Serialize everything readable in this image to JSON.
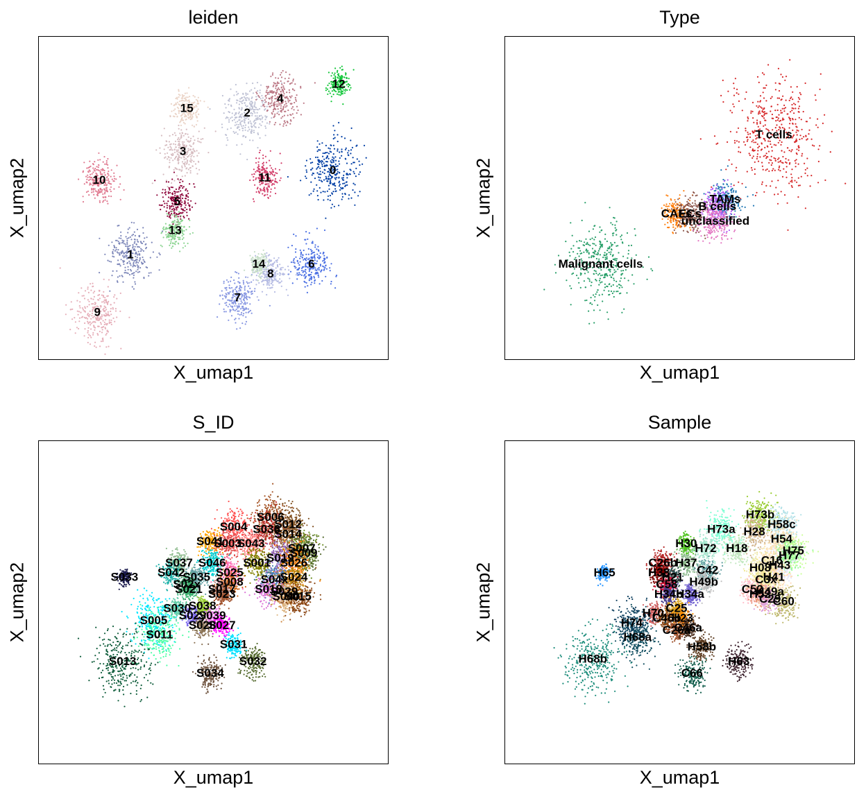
{
  "chart_data": [
    {
      "type": "scatter",
      "title": "leiden",
      "xlabel": "X_umap1",
      "ylabel": "X_umap2",
      "grid": false,
      "legend": "on data",
      "clusters": [
        {
          "name": "0",
          "x": 11.6,
          "y": 7.9,
          "color": "#023fa5",
          "spread": 1.2
        },
        {
          "name": "1",
          "x": 1.2,
          "y": 4.4,
          "color": "#7d87b9",
          "spread": 1.0
        },
        {
          "name": "2",
          "x": 7.2,
          "y": 10.3,
          "color": "#bec1d4",
          "spread": 1.1
        },
        {
          "name": "3",
          "x": 3.9,
          "y": 8.7,
          "color": "#d6bcc0",
          "spread": 0.9
        },
        {
          "name": "4",
          "x": 8.9,
          "y": 10.9,
          "color": "#bb7784",
          "spread": 0.9
        },
        {
          "name": "5",
          "x": 3.6,
          "y": 6.6,
          "color": "#8e063b",
          "spread": 0.7
        },
        {
          "name": "6",
          "x": 10.5,
          "y": 4.0,
          "color": "#4a6fe3",
          "spread": 0.9
        },
        {
          "name": "7",
          "x": 6.7,
          "y": 2.6,
          "color": "#8595e1",
          "spread": 0.8
        },
        {
          "name": "8",
          "x": 8.4,
          "y": 3.6,
          "color": "#b5bbe3",
          "spread": 0.7
        },
        {
          "name": "9",
          "x": -0.5,
          "y": 2.0,
          "color": "#e6afb9",
          "spread": 1.1
        },
        {
          "name": "10",
          "x": -0.4,
          "y": 7.5,
          "color": "#e07b91",
          "spread": 0.8
        },
        {
          "name": "11",
          "x": 8.1,
          "y": 7.6,
          "color": "#d33f6a",
          "spread": 0.6
        },
        {
          "name": "12",
          "x": 11.9,
          "y": 11.5,
          "color": "#11c638",
          "spread": 0.5
        },
        {
          "name": "13",
          "x": 3.5,
          "y": 5.4,
          "color": "#8dd593",
          "spread": 0.6
        },
        {
          "name": "14",
          "x": 7.8,
          "y": 4.0,
          "color": "#c6dec7",
          "spread": 0.4
        },
        {
          "name": "15",
          "x": 4.1,
          "y": 10.5,
          "color": "#ead3c6",
          "spread": 0.6
        }
      ]
    },
    {
      "type": "scatter",
      "title": "Type",
      "xlabel": "X_umap1",
      "ylabel": "X_umap2",
      "grid": false,
      "legend": "on data",
      "clusters": [
        {
          "name": "T cells",
          "x": 10.3,
          "y": 9.4,
          "color": "#d62728",
          "spread": 2.2
        },
        {
          "name": "TAMs",
          "x": 7.8,
          "y": 6.7,
          "color": "#1f77b4",
          "spread": 0.7
        },
        {
          "name": "B cells",
          "x": 7.4,
          "y": 6.4,
          "color": "#b55cf5",
          "spread": 0.7
        },
        {
          "name": "CAFs",
          "x": 5.3,
          "y": 6.1,
          "color": "#ff7f0e",
          "spread": 0.6
        },
        {
          "name": "ECs",
          "x": 6.0,
          "y": 6.1,
          "color": "#8c564b",
          "spread": 0.7
        },
        {
          "name": "unclassified",
          "x": 7.3,
          "y": 5.8,
          "color": "#e377c2",
          "spread": 0.8
        },
        {
          "name": "Malignant cells",
          "x": 1.4,
          "y": 4.0,
          "color": "#279e68",
          "spread": 1.6
        }
      ]
    },
    {
      "type": "scatter",
      "title": "S_ID",
      "xlabel": "X_umap1",
      "ylabel": "X_umap2",
      "grid": false,
      "legend": "on data",
      "clusters": [
        {
          "name": "S006",
          "x": 8.4,
          "y": 10.3,
          "color": "#a65628",
          "spread": 0.8
        },
        {
          "name": "S012",
          "x": 9.3,
          "y": 10.0,
          "color": "#7f4f1f",
          "spread": 0.8
        },
        {
          "name": "S004",
          "x": 6.5,
          "y": 9.9,
          "color": "#ff4f4f",
          "spread": 0.7
        },
        {
          "name": "S036",
          "x": 8.2,
          "y": 9.8,
          "color": "#c03030",
          "spread": 0.7
        },
        {
          "name": "S014",
          "x": 9.3,
          "y": 9.6,
          "color": "#8b5a2b",
          "spread": 0.8
        },
        {
          "name": "S041",
          "x": 5.3,
          "y": 9.3,
          "color": "#ffa500",
          "spread": 0.5
        },
        {
          "name": "S003",
          "x": 6.2,
          "y": 9.2,
          "color": "#e05050",
          "spread": 0.6
        },
        {
          "name": "S043",
          "x": 7.4,
          "y": 9.2,
          "color": "#ff8080",
          "spread": 0.6
        },
        {
          "name": "S007",
          "x": 10.0,
          "y": 9.0,
          "color": "#6b8e23",
          "spread": 0.7
        },
        {
          "name": "S009",
          "x": 10.1,
          "y": 8.8,
          "color": "#556b2f",
          "spread": 0.7
        },
        {
          "name": "S019",
          "x": 8.9,
          "y": 8.6,
          "color": "#9467bd",
          "spread": 0.7
        },
        {
          "name": "S026",
          "x": 9.6,
          "y": 8.4,
          "color": "#ff7f0e",
          "spread": 0.7
        },
        {
          "name": "S033",
          "x": 0.9,
          "y": 7.8,
          "color": "#1a1a4d",
          "spread": 0.3
        },
        {
          "name": "S037",
          "x": 3.7,
          "y": 8.4,
          "color": "#8fbc8f",
          "spread": 0.5
        },
        {
          "name": "S046",
          "x": 5.4,
          "y": 8.4,
          "color": "#00ced1",
          "spread": 0.5
        },
        {
          "name": "S042",
          "x": 3.3,
          "y": 8.0,
          "color": "#20b2aa",
          "spread": 0.5
        },
        {
          "name": "S025",
          "x": 6.3,
          "y": 8.0,
          "color": "#ff69b4",
          "spread": 0.5
        },
        {
          "name": "S001",
          "x": 7.7,
          "y": 8.4,
          "color": "#808000",
          "spread": 0.6
        },
        {
          "name": "S035",
          "x": 4.6,
          "y": 7.8,
          "color": "#5f9ea0",
          "spread": 0.5
        },
        {
          "name": "S024",
          "x": 9.6,
          "y": 7.8,
          "color": "#b8860b",
          "spread": 0.6
        },
        {
          "name": "S008",
          "x": 6.3,
          "y": 7.6,
          "color": "#d2691e",
          "spread": 0.5
        },
        {
          "name": "S02x",
          "x": 4.1,
          "y": 7.5,
          "color": "#2e8b57",
          "spread": 0.4
        },
        {
          "name": "S04x",
          "x": 8.6,
          "y": 7.7,
          "color": "#4682b4",
          "spread": 0.6
        },
        {
          "name": "S021",
          "x": 4.2,
          "y": 7.3,
          "color": "#3cb371",
          "spread": 0.4
        },
        {
          "name": "S018",
          "x": 8.3,
          "y": 7.3,
          "color": "#da70d6",
          "spread": 0.6
        },
        {
          "name": "S029",
          "x": 9.1,
          "y": 7.2,
          "color": "#cd853f",
          "spread": 0.6
        },
        {
          "name": "S017",
          "x": 5.9,
          "y": 7.3,
          "color": "#bc8f8f",
          "spread": 0.4
        },
        {
          "name": "S023",
          "x": 5.9,
          "y": 7.1,
          "color": "#a0522d",
          "spread": 0.4
        },
        {
          "name": "S040",
          "x": 9.2,
          "y": 7.0,
          "color": "#deb887",
          "spread": 0.6
        },
        {
          "name": "S015",
          "x": 9.8,
          "y": 7.0,
          "color": "#8b4513",
          "spread": 0.7
        },
        {
          "name": "S038",
          "x": 4.9,
          "y": 6.6,
          "color": "#9acd32",
          "spread": 0.4
        },
        {
          "name": "S030",
          "x": 3.6,
          "y": 6.5,
          "color": "#66cdaa",
          "spread": 0.4
        },
        {
          "name": "S02y",
          "x": 4.4,
          "y": 6.2,
          "color": "#7b68ee",
          "spread": 0.4
        },
        {
          "name": "S039",
          "x": 5.4,
          "y": 6.2,
          "color": "#ee82ee",
          "spread": 0.4
        },
        {
          "name": "S005",
          "x": 2.4,
          "y": 6.0,
          "color": "#00e5ff",
          "spread": 1.0
        },
        {
          "name": "S028",
          "x": 4.9,
          "y": 5.8,
          "color": "#8b7355",
          "spread": 0.4
        },
        {
          "name": "S027",
          "x": 5.9,
          "y": 5.8,
          "color": "#ff00ff",
          "spread": 0.4
        },
        {
          "name": "S011",
          "x": 2.7,
          "y": 5.4,
          "color": "#4dffa6",
          "spread": 0.9
        },
        {
          "name": "S031",
          "x": 6.5,
          "y": 5.0,
          "color": "#00e0ff",
          "spread": 0.4
        },
        {
          "name": "S013",
          "x": 0.8,
          "y": 4.3,
          "color": "#0d5c3a",
          "spread": 1.3
        },
        {
          "name": "S032",
          "x": 7.5,
          "y": 4.3,
          "color": "#556b2f",
          "spread": 0.6
        },
        {
          "name": "S034",
          "x": 5.3,
          "y": 3.8,
          "color": "#6b4f3a",
          "spread": 0.6
        }
      ]
    },
    {
      "type": "scatter",
      "title": "Sample",
      "xlabel": "X_umap1",
      "ylabel": "X_umap2",
      "grid": false,
      "legend": "on data",
      "clusters": [
        {
          "name": "H73b",
          "x": 9.6,
          "y": 10.4,
          "color": "#9acd32",
          "spread": 0.7
        },
        {
          "name": "H58c",
          "x": 10.7,
          "y": 10.0,
          "color": "#b0e0e6",
          "spread": 0.7
        },
        {
          "name": "H73a",
          "x": 7.6,
          "y": 9.8,
          "color": "#7fffd4",
          "spread": 0.7
        },
        {
          "name": "H28",
          "x": 9.3,
          "y": 9.7,
          "color": "#d2b48c",
          "spread": 0.7
        },
        {
          "name": "H54",
          "x": 10.7,
          "y": 9.4,
          "color": "#f5deb3",
          "spread": 0.7
        },
        {
          "name": "H30",
          "x": 5.8,
          "y": 9.2,
          "color": "#4dc31c",
          "spread": 0.4
        },
        {
          "name": "H72",
          "x": 6.8,
          "y": 9.0,
          "color": "#a8e6cf",
          "spread": 0.6
        },
        {
          "name": "H18",
          "x": 8.4,
          "y": 9.0,
          "color": "#c2e8c0",
          "spread": 0.6
        },
        {
          "name": "H75",
          "x": 11.3,
          "y": 8.9,
          "color": "#ccff99",
          "spread": 0.6
        },
        {
          "name": "H77",
          "x": 11.1,
          "y": 8.7,
          "color": "#98fb98",
          "spread": 0.6
        },
        {
          "name": "H43",
          "x": 10.6,
          "y": 8.3,
          "color": "#e6e6fa",
          "spread": 0.6
        },
        {
          "name": "C16",
          "x": 10.2,
          "y": 8.5,
          "color": "#ffe4b5",
          "spread": 0.6
        },
        {
          "name": "H08",
          "x": 9.6,
          "y": 8.2,
          "color": "#eee8aa",
          "spread": 0.6
        },
        {
          "name": "C26b",
          "x": 4.6,
          "y": 8.4,
          "color": "#b22222",
          "spread": 0.5
        },
        {
          "name": "H37",
          "x": 5.8,
          "y": 8.4,
          "color": "#8fbc8f",
          "spread": 0.5
        },
        {
          "name": "C42",
          "x": 6.9,
          "y": 8.1,
          "color": "#5f9ea0",
          "spread": 0.5
        },
        {
          "name": "H65",
          "x": 1.6,
          "y": 8.0,
          "color": "#1e90ff",
          "spread": 0.3
        },
        {
          "name": "H38",
          "x": 4.4,
          "y": 8.0,
          "color": "#800000",
          "spread": 0.4
        },
        {
          "name": "H21",
          "x": 5.1,
          "y": 7.8,
          "color": "#2f4f4f",
          "spread": 0.4
        },
        {
          "name": "H41",
          "x": 10.3,
          "y": 7.8,
          "color": "#ffdab9",
          "spread": 0.6
        },
        {
          "name": "C3x",
          "x": 9.9,
          "y": 7.7,
          "color": "#f0e68c",
          "spread": 0.6
        },
        {
          "name": "H49b",
          "x": 6.7,
          "y": 7.6,
          "color": "#c0c0c0",
          "spread": 0.5
        },
        {
          "name": "C58",
          "x": 4.8,
          "y": 7.5,
          "color": "#dc143c",
          "spread": 0.4
        },
        {
          "name": "C52",
          "x": 9.2,
          "y": 7.3,
          "color": "#ffc0cb",
          "spread": 0.5
        },
        {
          "name": "H49a",
          "x": 10.1,
          "y": 7.2,
          "color": "#fafad2",
          "spread": 0.6
        },
        {
          "name": "H34b",
          "x": 4.9,
          "y": 7.1,
          "color": "#483d8b",
          "spread": 0.4
        },
        {
          "name": "H34a",
          "x": 6.0,
          "y": 7.1,
          "color": "#6a5acd",
          "spread": 0.4
        },
        {
          "name": "H52",
          "x": 9.6,
          "y": 7.1,
          "color": "#e9967a",
          "spread": 0.5
        },
        {
          "name": "C29",
          "x": 10.1,
          "y": 6.9,
          "color": "#dda0dd",
          "spread": 0.5
        },
        {
          "name": "C60",
          "x": 10.8,
          "y": 6.8,
          "color": "#bdb76b",
          "spread": 0.6
        },
        {
          "name": "H70",
          "x": 4.1,
          "y": 6.3,
          "color": "#cd5c5c",
          "spread": 0.4
        },
        {
          "name": "C25",
          "x": 5.3,
          "y": 6.5,
          "color": "#daa520",
          "spread": 0.4
        },
        {
          "name": "C46b",
          "x": 4.8,
          "y": 6.1,
          "color": "#8b4513",
          "spread": 0.4
        },
        {
          "name": "H23",
          "x": 5.6,
          "y": 6.1,
          "color": "#ff8c00",
          "spread": 0.4
        },
        {
          "name": "H74",
          "x": 3.0,
          "y": 5.9,
          "color": "#0b3d5c",
          "spread": 0.8
        },
        {
          "name": "C26a",
          "x": 5.3,
          "y": 5.6,
          "color": "#a0522d",
          "spread": 0.4
        },
        {
          "name": "C46a",
          "x": 5.9,
          "y": 5.7,
          "color": "#4b2e1e",
          "spread": 0.4
        },
        {
          "name": "H68a",
          "x": 3.3,
          "y": 5.3,
          "color": "#114e60",
          "spread": 0.8
        },
        {
          "name": "H58b",
          "x": 6.6,
          "y": 4.9,
          "color": "#5c3a1e",
          "spread": 0.5
        },
        {
          "name": "H68b",
          "x": 1.0,
          "y": 4.4,
          "color": "#1a8c7a",
          "spread": 1.3
        },
        {
          "name": "H63",
          "x": 8.5,
          "y": 4.3,
          "color": "#3b1f2b",
          "spread": 0.6
        },
        {
          "name": "C66",
          "x": 6.1,
          "y": 3.8,
          "color": "#0f5c4a",
          "spread": 0.6
        }
      ]
    }
  ]
}
